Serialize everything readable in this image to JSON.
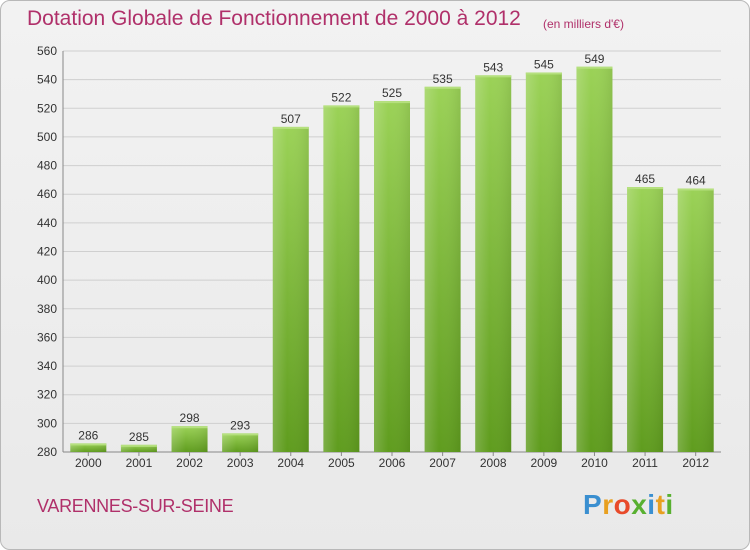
{
  "header": {
    "title": "Dotation Globale de Fonctionnement de 2000 à 2012",
    "unit": "(en milliers d'€)"
  },
  "commune": "VARENNES-SUR-SEINE",
  "logo": {
    "text": "Proxiti"
  },
  "colors": {
    "bar": "#7cc23a",
    "bar_dark": "#62a021",
    "title": "#b0306a"
  },
  "chart_data": {
    "type": "bar",
    "title": "Dotation Globale de Fonctionnement de 2000 à 2012",
    "subtitle": "(en milliers d'€)",
    "categories": [
      "2000",
      "2001",
      "2002",
      "2003",
      "2004",
      "2005",
      "2006",
      "2007",
      "2008",
      "2009",
      "2010",
      "2011",
      "2012"
    ],
    "values": [
      286,
      285,
      298,
      293,
      507,
      522,
      525,
      535,
      543,
      545,
      549,
      465,
      464
    ],
    "ylim": [
      280,
      560
    ],
    "yticks": [
      280,
      300,
      320,
      340,
      360,
      380,
      400,
      420,
      440,
      460,
      480,
      500,
      520,
      540,
      560
    ],
    "grid": true,
    "xlabel": "",
    "ylabel": ""
  }
}
